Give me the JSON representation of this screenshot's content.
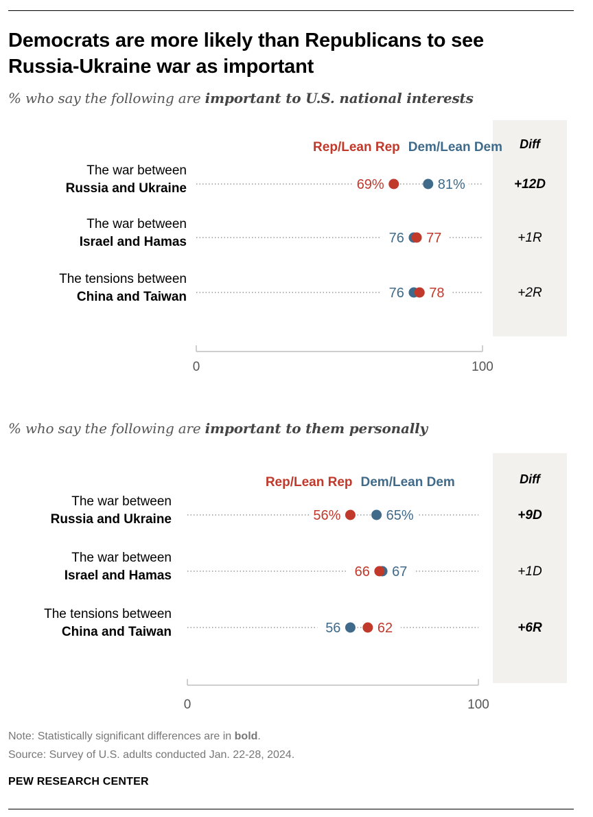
{
  "title_line1": "Democrats are more likely than Republicans to see",
  "title_line2": "Russia-Ukraine war as important",
  "colors": {
    "rep": "#c0392b",
    "dem": "#3f6a8a",
    "diff_bg": "#f2f1ee",
    "dot_line": "#999999",
    "axis": "#bfbfbf",
    "label_dem": "#3f6a8a",
    "label_rep": "#c0392b"
  },
  "chart_data": [
    {
      "type": "dot",
      "subtitle_prefix": "% who say the following are ",
      "subtitle_bold": "important to U.S. national interests",
      "legend_rep": "Rep/Lean Rep",
      "legend_dem": "Dem/Lean Dem",
      "diff_header": "Diff",
      "xlim": [
        0,
        100
      ],
      "ticks": [
        "0",
        "100"
      ],
      "rows": [
        {
          "label_line1": "The war between",
          "label_line2": "Russia and Ukraine",
          "rep": 69,
          "dem": 81,
          "rep_label": "69%",
          "dem_label": "81%",
          "diff": "+12D",
          "diff_bold": true
        },
        {
          "label_line1": "The war between",
          "label_line2": "Israel and Hamas",
          "rep": 77,
          "dem": 76,
          "rep_label": "77",
          "dem_label": "76",
          "diff": "+1R",
          "diff_bold": false
        },
        {
          "label_line1": "The tensions between",
          "label_line2": "China and Taiwan",
          "rep": 78,
          "dem": 76,
          "rep_label": "78",
          "dem_label": "76",
          "diff": "+2R",
          "diff_bold": false
        }
      ]
    },
    {
      "type": "dot",
      "subtitle_prefix": "% who say the following are ",
      "subtitle_bold": "important to them personally",
      "legend_rep": "Rep/Lean Rep",
      "legend_dem": "Dem/Lean Dem",
      "diff_header": "Diff",
      "xlim": [
        0,
        100
      ],
      "ticks": [
        "0",
        "100"
      ],
      "rows": [
        {
          "label_line1": "The war between",
          "label_line2": "Russia and Ukraine",
          "rep": 56,
          "dem": 65,
          "rep_label": "56%",
          "dem_label": "65%",
          "diff": "+9D",
          "diff_bold": true
        },
        {
          "label_line1": "The war between",
          "label_line2": "Israel and Hamas",
          "rep": 66,
          "dem": 67,
          "rep_label": "66",
          "dem_label": "67",
          "diff": "+1D",
          "diff_bold": false
        },
        {
          "label_line1": "The tensions between",
          "label_line2": "China and Taiwan",
          "rep": 62,
          "dem": 56,
          "rep_label": "62",
          "dem_label": "56",
          "diff": "+6R",
          "diff_bold": true
        }
      ]
    }
  ],
  "note_prefix": "Note: Statistically significant differences are in ",
  "note_bold": "bold",
  "note_suffix": ".",
  "source": "Source: Survey of U.S. adults conducted Jan. 22-28, 2024.",
  "brand": "PEW RESEARCH CENTER"
}
